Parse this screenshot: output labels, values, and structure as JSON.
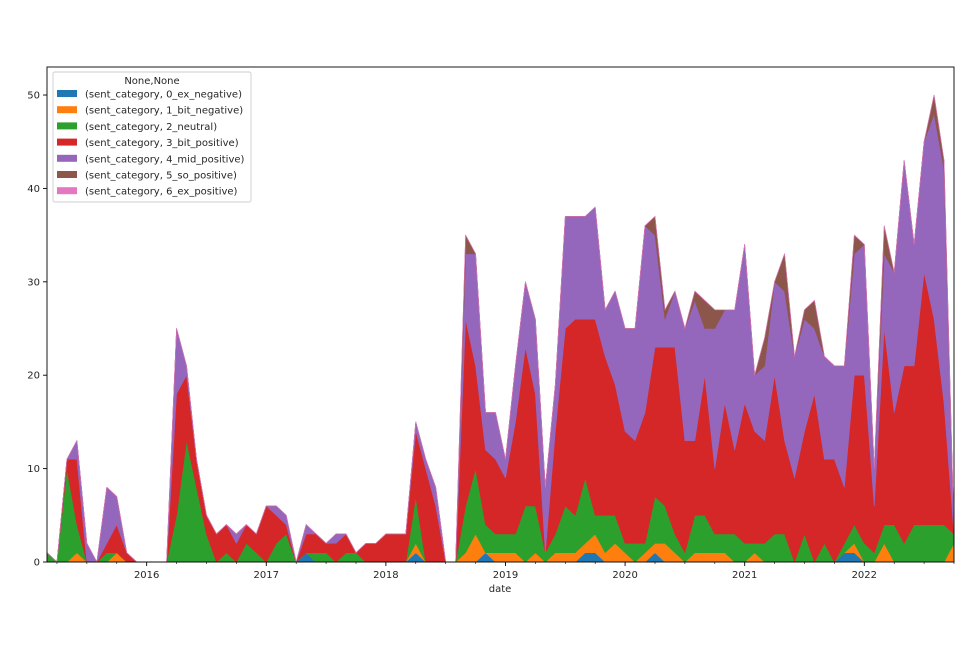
{
  "chart_data": {
    "type": "area",
    "stacked": true,
    "xlabel": "date",
    "ylabel": "",
    "ylim": [
      0,
      53
    ],
    "xlim": [
      "2015-03",
      "2022-10"
    ],
    "yticks": [
      0,
      10,
      20,
      30,
      40,
      50
    ],
    "xticks": [
      {
        "date": "2016-01",
        "label": "2016"
      },
      {
        "date": "2017-01",
        "label": "2017"
      },
      {
        "date": "2018-01",
        "label": "2018"
      },
      {
        "date": "2019-01",
        "label": "2019"
      },
      {
        "date": "2020-01",
        "label": "2020"
      },
      {
        "date": "2021-01",
        "label": "2021"
      },
      {
        "date": "2022-01",
        "label": "2022"
      }
    ],
    "legend": {
      "title": "None,None",
      "placement": "upper-left"
    },
    "x": [
      "2015-03",
      "2015-04",
      "2015-05",
      "2015-06",
      "2015-07",
      "2015-08",
      "2015-09",
      "2015-10",
      "2015-11",
      "2015-12",
      "2016-01",
      "2016-02",
      "2016-03",
      "2016-04",
      "2016-05",
      "2016-06",
      "2016-07",
      "2016-08",
      "2016-09",
      "2016-10",
      "2016-11",
      "2016-12",
      "2017-01",
      "2017-02",
      "2017-03",
      "2017-04",
      "2017-05",
      "2017-06",
      "2017-07",
      "2017-08",
      "2017-09",
      "2017-10",
      "2017-11",
      "2017-12",
      "2018-01",
      "2018-02",
      "2018-03",
      "2018-04",
      "2018-05",
      "2018-06",
      "2018-07",
      "2018-08",
      "2018-09",
      "2018-10",
      "2018-11",
      "2018-12",
      "2019-01",
      "2019-02",
      "2019-03",
      "2019-04",
      "2019-05",
      "2019-06",
      "2019-07",
      "2019-08",
      "2019-09",
      "2019-10",
      "2019-11",
      "2019-12",
      "2020-01",
      "2020-02",
      "2020-03",
      "2020-04",
      "2020-05",
      "2020-06",
      "2020-07",
      "2020-08",
      "2020-09",
      "2020-10",
      "2020-11",
      "2020-12",
      "2021-01",
      "2021-02",
      "2021-03",
      "2021-04",
      "2021-05",
      "2021-06",
      "2021-07",
      "2021-08",
      "2021-09",
      "2021-10",
      "2021-11",
      "2021-12",
      "2022-01",
      "2022-02",
      "2022-03",
      "2022-04",
      "2022-05",
      "2022-06",
      "2022-07",
      "2022-08",
      "2022-09",
      "2022-10"
    ],
    "series": [
      {
        "name": "(sent_category, 0_ex_negative)",
        "color": "#1f77b4",
        "values": [
          0,
          0,
          0,
          0,
          0,
          0,
          0,
          0,
          0,
          0,
          0,
          0,
          0,
          0,
          0,
          0,
          0,
          0,
          0,
          0,
          0,
          0,
          0,
          0,
          0,
          0,
          1,
          0,
          0,
          0,
          0,
          0,
          0,
          0,
          0,
          0,
          0,
          1,
          0,
          0,
          0,
          0,
          0,
          0,
          1,
          0,
          0,
          0,
          0,
          0,
          0,
          0,
          0,
          0,
          1,
          1,
          0,
          0,
          0,
          0,
          0,
          1,
          0,
          0,
          0,
          0,
          0,
          0,
          0,
          0,
          0,
          0,
          0,
          0,
          0,
          0,
          0,
          0,
          0,
          0,
          1,
          1,
          0,
          0,
          0,
          0,
          0,
          0,
          0,
          0,
          0,
          0
        ]
      },
      {
        "name": "(sent_category, 1_bit_negative)",
        "color": "#ff7f0e",
        "values": [
          0,
          0,
          0,
          1,
          0,
          0,
          0,
          1,
          0,
          0,
          0,
          0,
          0,
          0,
          0,
          0,
          0,
          0,
          0,
          0,
          0,
          0,
          0,
          0,
          0,
          0,
          0,
          0,
          0,
          0,
          0,
          0,
          0,
          0,
          0,
          0,
          0,
          1,
          0,
          0,
          0,
          0,
          1,
          3,
          0,
          1,
          1,
          1,
          0,
          1,
          0,
          1,
          1,
          1,
          1,
          2,
          1,
          2,
          1,
          0,
          1,
          1,
          2,
          1,
          0,
          1,
          1,
          1,
          1,
          0,
          0,
          1,
          0,
          0,
          0,
          0,
          0,
          0,
          0,
          0,
          0,
          1,
          0,
          0,
          2,
          0,
          0,
          0,
          0,
          0,
          0,
          2
        ]
      },
      {
        "name": "(sent_category, 2_neutral)",
        "color": "#2ca02c",
        "values": [
          1,
          0,
          10,
          3,
          0,
          0,
          1,
          0,
          0,
          0,
          0,
          0,
          0,
          5,
          13,
          8,
          3,
          0,
          1,
          0,
          2,
          1,
          0,
          2,
          3,
          0,
          0,
          1,
          1,
          0,
          1,
          1,
          0,
          0,
          0,
          0,
          0,
          5,
          0,
          0,
          0,
          0,
          5,
          7,
          3,
          2,
          2,
          2,
          6,
          5,
          1,
          2,
          5,
          4,
          7,
          2,
          4,
          3,
          1,
          2,
          1,
          5,
          4,
          2,
          1,
          4,
          4,
          2,
          2,
          3,
          2,
          1,
          2,
          3,
          3,
          0,
          3,
          0,
          2,
          0,
          1,
          2,
          2,
          1,
          2,
          4,
          2,
          4,
          4,
          4,
          4,
          1
        ]
      },
      {
        "name": "(sent_category, 3_bit_positive)",
        "color": "#d62728",
        "values": [
          0,
          0,
          1,
          7,
          0,
          0,
          1,
          3,
          1,
          0,
          0,
          0,
          0,
          13,
          7,
          3,
          2,
          3,
          3,
          2,
          2,
          2,
          6,
          3,
          1,
          0,
          2,
          2,
          1,
          2,
          2,
          0,
          2,
          2,
          3,
          3,
          3,
          7,
          10,
          6,
          0,
          0,
          20,
          11,
          8,
          8,
          6,
          12,
          17,
          12,
          0,
          11,
          19,
          21,
          17,
          21,
          17,
          14,
          12,
          11,
          14,
          16,
          17,
          20,
          12,
          8,
          15,
          7,
          14,
          9,
          15,
          12,
          11,
          17,
          10,
          9,
          11,
          18,
          9,
          11,
          6,
          16,
          18,
          5,
          21,
          12,
          19,
          17,
          27,
          22,
          13,
          0
        ]
      },
      {
        "name": "(sent_category, 4_mid_positive)",
        "color": "#9467bd",
        "values": [
          0,
          0,
          0,
          2,
          2,
          0,
          6,
          3,
          0,
          0,
          0,
          0,
          0,
          7,
          1,
          0,
          0,
          0,
          0,
          1,
          0,
          0,
          0,
          1,
          1,
          0,
          1,
          0,
          0,
          1,
          0,
          0,
          0,
          0,
          0,
          0,
          0,
          1,
          1,
          2,
          0,
          0,
          7,
          12,
          4,
          5,
          2,
          6,
          7,
          8,
          7,
          5,
          12,
          11,
          11,
          12,
          5,
          10,
          11,
          12,
          20,
          12,
          3,
          6,
          12,
          15,
          5,
          15,
          10,
          15,
          17,
          6,
          8,
          10,
          16,
          13,
          12,
          7,
          11,
          10,
          13,
          13,
          14,
          4,
          8,
          15,
          22,
          13,
          14,
          22,
          25,
          0
        ]
      },
      {
        "name": "(sent_category, 5_so_positive)",
        "color": "#8c564b",
        "values": [
          0,
          0,
          0,
          0,
          0,
          0,
          0,
          0,
          0,
          0,
          0,
          0,
          0,
          0,
          0,
          0,
          0,
          0,
          0,
          0,
          0,
          0,
          0,
          0,
          0,
          0,
          0,
          0,
          0,
          0,
          0,
          0,
          0,
          0,
          0,
          0,
          0,
          0,
          0,
          0,
          0,
          0,
          2,
          0,
          0,
          0,
          0,
          0,
          0,
          0,
          0,
          0,
          0,
          0,
          0,
          0,
          0,
          0,
          0,
          0,
          0,
          2,
          1,
          0,
          0,
          1,
          3,
          2,
          0,
          0,
          0,
          0,
          3,
          0,
          4,
          0,
          1,
          3,
          0,
          0,
          0,
          2,
          0,
          0,
          3,
          0,
          0,
          0,
          0,
          2,
          1,
          0
        ]
      },
      {
        "name": "(sent_category, 6_ex_positive)",
        "color": "#e377c2",
        "values": [
          0,
          0,
          0,
          0,
          0,
          0,
          0,
          0,
          0,
          0,
          0,
          0,
          0,
          0,
          0,
          0,
          0,
          0,
          0,
          0,
          0,
          0,
          0,
          0,
          0,
          0,
          0,
          0,
          0,
          0,
          0,
          0,
          0,
          0,
          0,
          0,
          0,
          0,
          0,
          0,
          0,
          0,
          0,
          0,
          0,
          0,
          0,
          0,
          0,
          0,
          0,
          0,
          0,
          0,
          0,
          0,
          0,
          0,
          0,
          0,
          0,
          0,
          0,
          0,
          0,
          0,
          0,
          0,
          0,
          0,
          0,
          0,
          0,
          0,
          0,
          0,
          0,
          0,
          0,
          0,
          0,
          0,
          0,
          0,
          0,
          0,
          0,
          0,
          0,
          0,
          0,
          0
        ]
      }
    ]
  }
}
